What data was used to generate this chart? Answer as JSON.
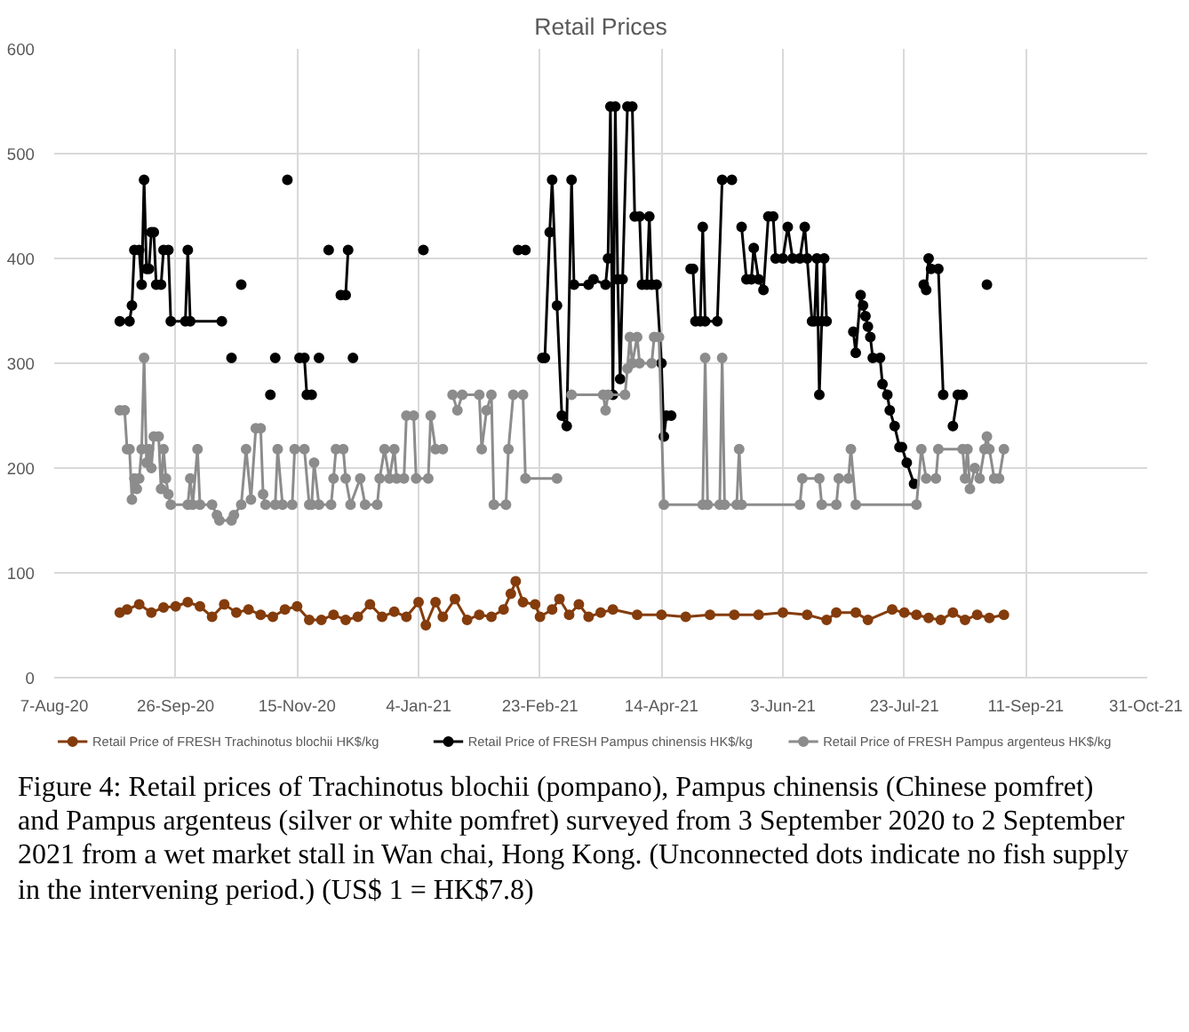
{
  "chart_data": {
    "type": "line",
    "title": "Retail Prices",
    "xlim": [
      "2020-08-07",
      "2021-10-31"
    ],
    "xticks": [
      {
        "value": "2020-08-07",
        "label": "7-Aug-20"
      },
      {
        "value": "2020-09-26",
        "label": "26-Sep-20"
      },
      {
        "value": "2020-11-15",
        "label": "15-Nov-20"
      },
      {
        "value": "2021-01-04",
        "label": "4-Jan-21"
      },
      {
        "value": "2021-02-23",
        "label": "23-Feb-21"
      },
      {
        "value": "2021-04-14",
        "label": "14-Apr-21"
      },
      {
        "value": "2021-06-03",
        "label": "3-Jun-21"
      },
      {
        "value": "2021-07-23",
        "label": "23-Jul-21"
      },
      {
        "value": "2021-09-11",
        "label": "11-Sep-21"
      },
      {
        "value": "2021-10-31",
        "label": "31-Oct-21"
      }
    ],
    "ylim": [
      0,
      600
    ],
    "yticks": [
      0,
      100,
      200,
      300,
      400,
      500,
      600
    ],
    "grid": true,
    "legend": "bottom",
    "marker": "circle",
    "line_style": "solid",
    "series": [
      {
        "name": "Retail Price of FRESH Trachinotus blochii HK$/kg",
        "color": "#843c0c",
        "x": [
          "2020-09-03",
          "2020-09-06",
          "2020-09-11",
          "2020-09-16",
          "2020-09-21",
          "2020-09-26",
          "2020-10-01",
          "2020-10-06",
          "2020-10-11",
          "2020-10-16",
          "2020-10-21",
          "2020-10-26",
          "2020-10-31",
          "2020-11-05",
          "2020-11-10",
          "2020-11-15",
          "2020-11-20",
          "2020-11-25",
          "2020-11-30",
          "2020-12-05",
          "2020-12-10",
          "2020-12-15",
          "2020-12-20",
          "2020-12-25",
          "2020-12-30",
          "2021-01-04",
          "2021-01-07",
          "2021-01-11",
          "2021-01-14",
          "2021-01-19",
          "2021-01-24",
          "2021-01-29",
          "2021-02-03",
          "2021-02-08",
          "2021-02-11",
          "2021-02-13",
          "2021-02-16",
          "2021-02-21",
          "2021-02-23",
          "2021-02-28",
          "2021-03-03",
          "2021-03-07",
          "2021-03-11",
          "2021-03-15",
          "2021-03-20",
          "2021-03-25",
          "2021-04-04",
          "2021-04-14",
          "2021-04-24",
          "2021-05-04",
          "2021-05-14",
          "2021-05-24",
          "2021-06-03",
          "2021-06-13",
          "2021-06-21",
          "2021-06-25",
          "2021-07-03",
          "2021-07-08",
          "2021-07-18",
          "2021-07-23",
          "2021-07-28",
          "2021-08-02",
          "2021-08-07",
          "2021-08-12",
          "2021-08-17",
          "2021-08-22",
          "2021-08-27",
          "2021-09-02"
        ],
        "values": [
          62,
          65,
          70,
          62,
          67,
          68,
          72,
          68,
          58,
          70,
          62,
          65,
          60,
          58,
          65,
          68,
          55,
          55,
          60,
          55,
          58,
          70,
          58,
          63,
          58,
          72,
          50,
          72,
          58,
          75,
          55,
          60,
          58,
          65,
          80,
          92,
          72,
          70,
          58,
          65,
          75,
          60,
          70,
          58,
          62,
          65,
          60,
          60,
          58,
          60,
          60,
          60,
          62,
          60,
          55,
          62,
          62,
          55,
          65,
          62,
          60,
          57,
          55,
          62,
          55,
          60,
          57,
          60
        ]
      },
      {
        "name": "Retail Price of FRESH Pampus chinensis HK$/kg",
        "color": "#000000",
        "x": [
          "2020-09-03",
          "2020-09-07",
          "2020-09-08",
          "2020-09-09",
          "2020-09-11",
          "2020-09-12",
          "2020-09-13",
          "2020-09-14",
          "2020-09-15",
          "2020-09-16",
          "2020-09-17",
          "2020-09-18",
          "2020-09-20",
          "2020-09-21",
          "2020-09-23",
          "2020-09-24",
          "2020-09-30",
          "2020-10-01",
          "2020-10-02",
          "2020-10-15",
          "2020-10-16",
          "2020-10-19",
          "2020-10-20",
          "2020-10-23",
          "2020-10-24",
          "2020-11-04",
          "2020-11-05",
          "2020-11-06",
          "2020-11-07",
          "2020-11-11",
          "2020-11-12",
          "2020-11-16",
          "2020-11-18",
          "2020-11-19",
          "2020-11-21",
          "2020-11-22",
          "2020-11-24",
          "2020-11-25",
          "2020-11-28",
          "2020-11-29",
          "2020-12-03",
          "2020-12-05",
          "2020-12-06",
          "2020-12-07",
          "2020-12-08",
          "2020-12-09",
          "2021-01-06",
          "2021-01-07",
          "2021-02-14",
          "2021-02-17",
          "2021-02-18",
          "2021-02-24",
          "2021-02-25",
          "2021-02-27",
          "2021-02-28",
          "2021-03-02",
          "2021-03-04",
          "2021-03-06",
          "2021-03-08",
          "2021-03-09",
          "2021-03-15",
          "2021-03-17",
          "2021-03-22",
          "2021-03-23",
          "2021-03-24",
          "2021-03-25",
          "2021-03-26",
          "2021-03-27",
          "2021-03-28",
          "2021-03-29",
          "2021-03-31",
          "2021-04-02",
          "2021-04-03",
          "2021-04-05",
          "2021-04-06",
          "2021-04-08",
          "2021-04-09",
          "2021-04-10",
          "2021-04-12",
          "2021-04-14",
          "2021-04-15",
          "2021-04-16",
          "2021-04-18",
          "2021-04-20",
          "2021-04-26",
          "2021-04-27",
          "2021-04-28",
          "2021-04-30",
          "2021-05-01",
          "2021-05-02",
          "2021-05-07",
          "2021-05-09",
          "2021-05-13",
          "2021-05-15",
          "2021-05-17",
          "2021-05-19",
          "2021-05-21",
          "2021-05-22",
          "2021-05-24",
          "2021-05-26",
          "2021-05-28",
          "2021-05-30",
          "2021-05-31",
          "2021-06-03",
          "2021-06-05",
          "2021-06-07",
          "2021-06-10",
          "2021-06-12",
          "2021-06-13",
          "2021-06-15",
          "2021-06-16",
          "2021-06-17",
          "2021-06-18",
          "2021-06-19",
          "2021-06-20",
          "2021-06-21",
          "2021-06-25",
          "2021-07-02",
          "2021-07-03",
          "2021-07-05",
          "2021-07-06",
          "2021-07-07",
          "2021-07-08",
          "2021-07-09",
          "2021-07-10",
          "2021-07-13",
          "2021-07-14",
          "2021-07-16",
          "2021-07-17",
          "2021-07-19",
          "2021-07-21",
          "2021-07-22",
          "2021-07-24",
          "2021-07-27",
          "2021-07-29",
          "2021-07-31",
          "2021-08-01",
          "2021-08-02",
          "2021-08-03",
          "2021-08-06",
          "2021-08-08",
          "2021-08-10",
          "2021-08-12",
          "2021-08-14",
          "2021-08-16",
          "2021-08-20",
          "2021-08-26"
        ],
        "values": [
          340,
          340,
          355,
          408,
          408,
          375,
          475,
          390,
          390,
          425,
          425,
          375,
          375,
          408,
          408,
          340,
          340,
          408,
          340,
          340,
          null,
          305,
          null,
          375,
          null,
          270,
          null,
          305,
          null,
          475,
          null,
          305,
          305,
          270,
          270,
          null,
          305,
          null,
          408,
          null,
          365,
          365,
          408,
          null,
          305,
          null,
          408,
          null,
          408,
          408,
          null,
          305,
          305,
          425,
          475,
          355,
          250,
          240,
          475,
          375,
          375,
          380,
          375,
          400,
          545,
          270,
          545,
          380,
          285,
          380,
          545,
          545,
          440,
          440,
          375,
          375,
          440,
          375,
          375,
          300,
          230,
          250,
          250,
          null,
          390,
          390,
          340,
          340,
          430,
          340,
          340,
          475,
          475,
          null,
          430,
          380,
          380,
          410,
          380,
          370,
          440,
          440,
          400,
          400,
          430,
          400,
          400,
          430,
          400,
          340,
          340,
          400,
          270,
          340,
          400,
          340,
          null,
          330,
          310,
          365,
          355,
          345,
          335,
          325,
          305,
          305,
          280,
          270,
          255,
          240,
          220,
          220,
          205,
          185,
          null,
          375,
          370,
          400,
          390,
          390,
          270,
          null,
          240,
          270,
          270,
          null,
          375
        ]
      },
      {
        "name": "Retail Price of FRESH Pampus argenteus HK$/kg",
        "color": "#8c8c8c",
        "x": [
          "2020-09-03",
          "2020-09-05",
          "2020-09-06",
          "2020-09-07",
          "2020-09-08",
          "2020-09-09",
          "2020-09-10",
          "2020-09-11",
          "2020-09-12",
          "2020-09-13",
          "2020-09-14",
          "2020-09-15",
          "2020-09-16",
          "2020-09-17",
          "2020-09-19",
          "2020-09-20",
          "2020-09-21",
          "2020-09-22",
          "2020-09-23",
          "2020-09-24",
          "2020-10-01",
          "2020-10-02",
          "2020-10-03",
          "2020-10-05",
          "2020-10-06",
          "2020-10-11",
          "2020-10-13",
          "2020-10-14",
          "2020-10-19",
          "2020-10-20",
          "2020-10-23",
          "2020-10-25",
          "2020-10-27",
          "2020-10-29",
          "2020-10-31",
          "2020-11-01",
          "2020-11-02",
          "2020-11-06",
          "2020-11-07",
          "2020-11-09",
          "2020-11-13",
          "2020-11-14",
          "2020-11-18",
          "2020-11-20",
          "2020-11-21",
          "2020-11-22",
          "2020-11-24",
          "2020-11-29",
          "2020-11-30",
          "2020-12-01",
          "2020-12-04",
          "2020-12-05",
          "2020-12-07",
          "2020-12-11",
          "2020-12-13",
          "2020-12-18",
          "2020-12-19",
          "2020-12-21",
          "2020-12-23",
          "2020-12-25",
          "2020-12-26",
          "2020-12-29",
          "2020-12-30",
          "2021-01-02",
          "2021-01-03",
          "2021-01-08",
          "2021-01-09",
          "2021-01-11",
          "2021-01-14",
          "2021-01-16",
          "2021-01-18",
          "2021-01-20",
          "2021-01-22",
          "2021-01-29",
          "2021-01-30",
          "2021-02-01",
          "2021-02-03",
          "2021-02-04",
          "2021-02-09",
          "2021-02-10",
          "2021-02-12",
          "2021-02-16",
          "2021-02-17",
          "2021-03-02",
          "2021-03-05",
          "2021-03-08",
          "2021-03-21",
          "2021-03-22",
          "2021-03-23",
          "2021-03-30",
          "2021-03-31",
          "2021-04-01",
          "2021-04-02",
          "2021-04-04",
          "2021-04-05",
          "2021-04-10",
          "2021-04-11",
          "2021-04-13",
          "2021-04-15",
          "2021-05-01",
          "2021-05-02",
          "2021-05-03",
          "2021-05-08",
          "2021-05-09",
          "2021-05-10",
          "2021-05-15",
          "2021-05-16",
          "2021-05-17",
          "2021-06-10",
          "2021-06-11",
          "2021-06-18",
          "2021-06-19",
          "2021-06-25",
          "2021-06-26",
          "2021-06-30",
          "2021-07-01",
          "2021-07-03",
          "2021-07-28",
          "2021-07-30",
          "2021-08-01",
          "2021-08-05",
          "2021-08-06",
          "2021-08-16",
          "2021-08-17",
          "2021-08-18",
          "2021-08-19",
          "2021-08-21",
          "2021-08-23",
          "2021-08-25",
          "2021-08-26",
          "2021-08-27",
          "2021-08-29",
          "2021-08-31",
          "2021-09-02"
        ],
        "values": [
          255,
          255,
          218,
          218,
          170,
          190,
          180,
          190,
          218,
          305,
          205,
          218,
          200,
          230,
          230,
          180,
          218,
          190,
          175,
          165,
          165,
          190,
          165,
          218,
          165,
          165,
          155,
          150,
          150,
          155,
          165,
          218,
          170,
          238,
          238,
          175,
          165,
          165,
          218,
          165,
          165,
          218,
          218,
          165,
          165,
          205,
          165,
          165,
          190,
          218,
          218,
          190,
          165,
          190,
          165,
          165,
          190,
          218,
          190,
          218,
          190,
          190,
          250,
          250,
          190,
          190,
          250,
          218,
          218,
          null,
          270,
          255,
          270,
          270,
          218,
          255,
          270,
          165,
          165,
          218,
          270,
          270,
          190,
          190,
          null,
          270,
          270,
          255,
          270,
          270,
          295,
          325,
          300,
          325,
          300,
          300,
          325,
          325,
          165,
          165,
          305,
          165,
          165,
          305,
          165,
          165,
          218,
          165,
          165,
          190,
          190,
          165,
          165,
          190,
          190,
          218,
          165,
          165,
          218,
          190,
          190,
          218,
          218,
          190,
          218,
          180,
          200,
          190,
          218,
          230,
          218,
          190,
          190,
          218
        ]
      }
    ],
    "annotations": [
      "Figure 4: Retail prices of Trachinotus blochii (pompano), Pampus chinensis (Chinese pomfret) and Pampus argenteus (silver or white pomfret) surveyed from 3 September 2020 to 2 September 2021 from a wet market stall in Wan chai, Hong Kong.  (Unconnected dots indicate no fish supply in the intervening period.)  (US$ 1 = HK$7.8)"
    ]
  }
}
